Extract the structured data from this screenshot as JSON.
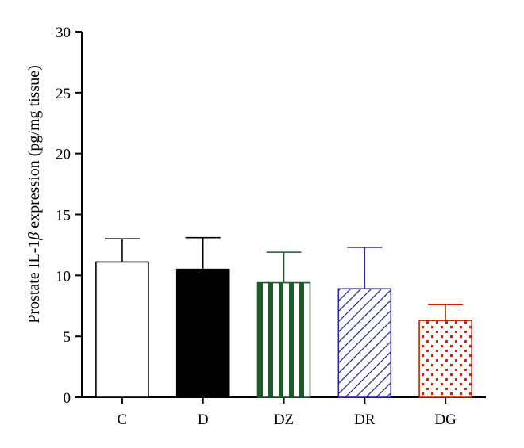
{
  "chart_data": {
    "type": "bar",
    "categories": [
      "C",
      "D",
      "DZ",
      "DR",
      "DG"
    ],
    "values": [
      11.1,
      10.5,
      9.4,
      8.9,
      6.3
    ],
    "errors": [
      1.9,
      2.6,
      2.5,
      3.4,
      1.3
    ],
    "ylabel": "Prostate IL-1β expression (pg/mg tissue)",
    "ylabel_parts": {
      "before": "Prostate IL-1",
      "symbol": "β",
      "after": " expression (pg/mg tissue)"
    },
    "ylim": [
      0,
      30
    ],
    "yticks": [
      "0",
      "5",
      "10",
      "15",
      "20",
      "25",
      "30"
    ],
    "grid": false,
    "bar_styles": [
      {
        "fill": "white",
        "color": "#000000"
      },
      {
        "fill": "solid",
        "color": "#000000"
      },
      {
        "fill": "vertical-stripes",
        "color": "#1e5a2a"
      },
      {
        "fill": "diagonal-hatch",
        "color": "#2a2a9a"
      },
      {
        "fill": "dots",
        "color": "#cc2200"
      }
    ]
  }
}
